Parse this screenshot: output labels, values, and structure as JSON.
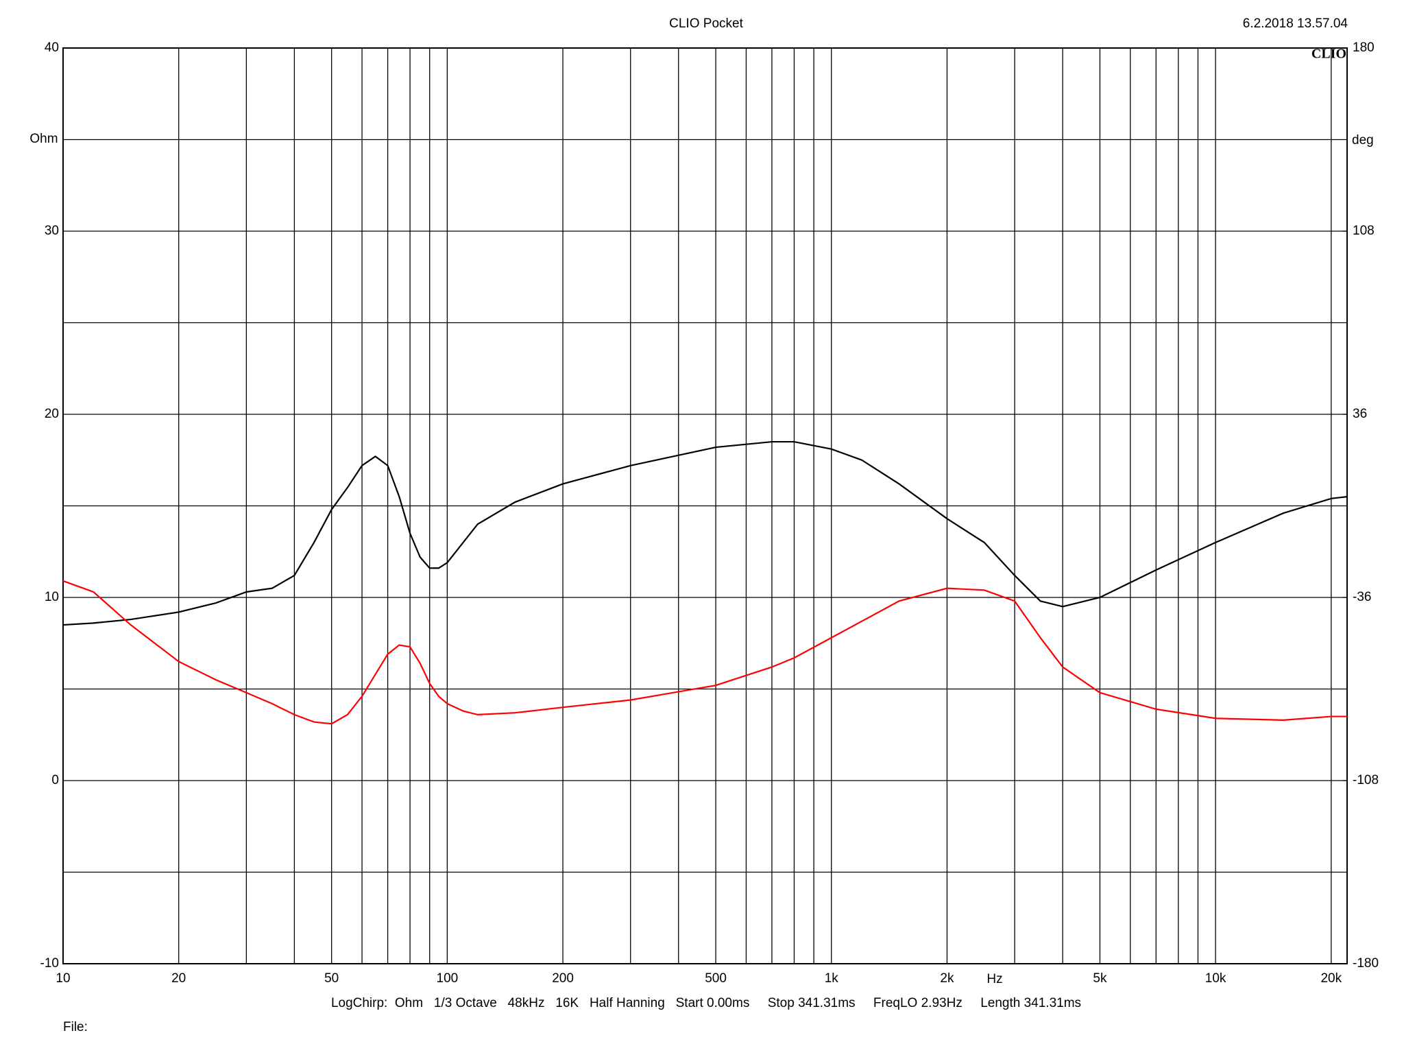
{
  "chart_data": {
    "type": "line",
    "title": "CLIO Pocket",
    "timestamp": "6.2.2018 13.57.04",
    "logo": "CLIO",
    "ylabel": "Ohm",
    "y2label": "deg",
    "xlabel": "Hz",
    "footer": "LogChirp:  Ohm   1/3 Octave   48kHz   16K   Half Hanning   Start 0.00ms     Stop 341.31ms     FreqLO 2.93Hz     Length 341.31ms",
    "file_label": "File:",
    "xscale": "log",
    "grid": true,
    "xlim": [
      10,
      22000
    ],
    "xticks": [
      10,
      20,
      50,
      100,
      200,
      500,
      {
        "value": 1000,
        "label": "1k"
      },
      {
        "value": 2000,
        "label": "2k"
      },
      {
        "value": 5000,
        "label": "5k"
      },
      {
        "value": 10000,
        "label": "10k"
      },
      {
        "value": 20000,
        "label": "20k"
      }
    ],
    "xgrid_minor": [
      30,
      40,
      60,
      70,
      80,
      90,
      300,
      400,
      600,
      700,
      800,
      900,
      3000,
      4000,
      6000,
      7000,
      8000,
      9000
    ],
    "ylim": [
      -10,
      40
    ],
    "yticks": [
      -10,
      0,
      10,
      20,
      30,
      40
    ],
    "ygrid_minor": [
      -5,
      5,
      15,
      25,
      35
    ],
    "y2lim": [
      -180,
      180
    ],
    "y2ticks": [
      -180,
      -108,
      -36,
      36,
      108,
      180
    ],
    "x": [
      10,
      12,
      15,
      20,
      25,
      30,
      35,
      40,
      45,
      50,
      55,
      60,
      65,
      70,
      75,
      80,
      85,
      90,
      95,
      100,
      110,
      120,
      150,
      200,
      300,
      500,
      700,
      800,
      1000,
      1200,
      1500,
      2000,
      2500,
      3000,
      3500,
      4000,
      5000,
      7000,
      10000,
      15000,
      20000,
      22000
    ],
    "series": [
      {
        "color": "#000000",
        "values": [
          8.5,
          8.6,
          8.8,
          9.2,
          9.7,
          10.3,
          10.5,
          11.2,
          13.0,
          14.8,
          16.0,
          17.2,
          17.7,
          17.2,
          15.5,
          13.5,
          12.2,
          11.6,
          11.6,
          11.9,
          13.0,
          14.0,
          15.2,
          16.2,
          17.2,
          18.2,
          18.5,
          18.5,
          18.1,
          17.5,
          16.2,
          14.3,
          13.0,
          11.2,
          9.8,
          9.5,
          10.0,
          11.5,
          13.0,
          14.6,
          15.4,
          15.5
        ]
      },
      {
        "color": "#ff0000",
        "values": [
          10.9,
          10.3,
          8.5,
          6.5,
          5.5,
          4.8,
          4.2,
          3.6,
          3.2,
          3.1,
          3.6,
          4.6,
          5.8,
          6.9,
          7.4,
          7.3,
          6.4,
          5.3,
          4.6,
          4.2,
          3.8,
          3.6,
          3.7,
          4.0,
          4.4,
          5.2,
          6.2,
          6.7,
          7.8,
          8.7,
          9.8,
          10.5,
          10.4,
          9.8,
          7.8,
          6.2,
          4.8,
          3.9,
          3.4,
          3.3,
          3.5,
          3.5
        ]
      }
    ]
  }
}
